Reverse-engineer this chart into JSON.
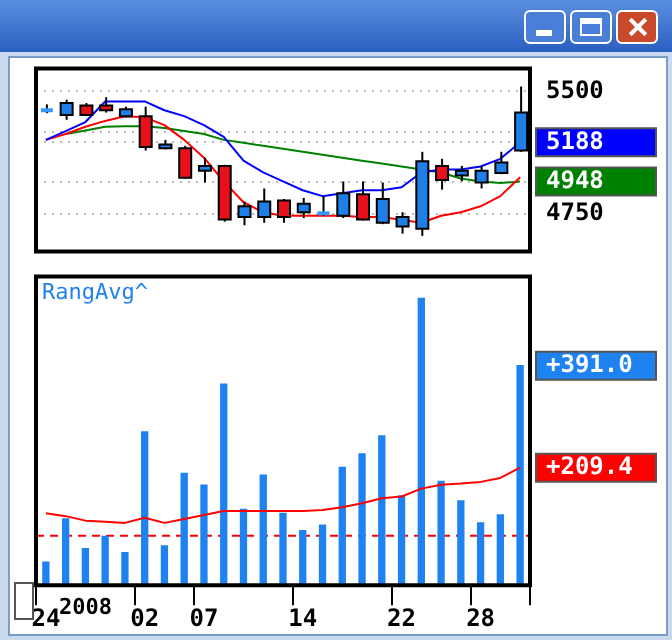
{
  "chart_data": [
    {
      "type": "candlestick",
      "categories": [
        "24",
        null,
        null,
        null,
        null,
        "02",
        null,
        null,
        "07",
        null,
        null,
        null,
        null,
        "14",
        null,
        null,
        null,
        null,
        "22",
        null,
        null,
        null,
        "28",
        null,
        null
      ],
      "ohlc": [
        [
          5384,
          5420,
          5366,
          5384
        ],
        [
          5355,
          5449,
          5326,
          5428
        ],
        [
          5413,
          5428,
          5348,
          5355
        ],
        [
          5413,
          5464,
          5370,
          5384
        ],
        [
          5348,
          5406,
          5341,
          5391
        ],
        [
          5348,
          5406,
          5138,
          5159
        ],
        [
          5152,
          5203,
          5145,
          5174
        ],
        [
          5152,
          5167,
          4964,
          4971
        ],
        [
          5015,
          5094,
          4942,
          5044
        ],
        [
          5044,
          5051,
          4703,
          4717
        ],
        [
          4732,
          4826,
          4681,
          4797
        ],
        [
          4732,
          4906,
          4696,
          4826
        ],
        [
          4833,
          4841,
          4696,
          4732
        ],
        [
          4761,
          4848,
          4725,
          4812
        ],
        [
          4754,
          4862,
          4739,
          4754
        ],
        [
          4739,
          4949,
          4725,
          4877
        ],
        [
          4870,
          4949,
          4710,
          4717
        ],
        [
          4696,
          4942,
          4688,
          4841
        ],
        [
          4674,
          4761,
          4630,
          4732
        ],
        [
          4659,
          5130,
          4616,
          5072
        ],
        [
          5044,
          5087,
          4899,
          4957
        ],
        [
          4986,
          5044,
          4950,
          5015
        ],
        [
          4942,
          5044,
          4906,
          5015
        ],
        [
          5000,
          5130,
          4993,
          5065
        ],
        [
          5138,
          5529,
          5130,
          5370
        ]
      ],
      "colors": [
        "#3399ff",
        "#1e7fe8",
        "#e8101a",
        "#e8101a",
        "#1e7fe8",
        "#e8101a",
        "#1e7fe8",
        "#e8101a",
        "#1e7fe8",
        "#e8101a",
        "#1e7fe8",
        "#1e7fe8",
        "#e8101a",
        "#1e7fe8",
        "#3399ff",
        "#1e7fe8",
        "#e8101a",
        "#1e7fe8",
        "#1e7fe8",
        "#1e7fe8",
        "#e8101a",
        "#1e7fe8",
        "#1e7fe8",
        "#1e7fe8",
        "#1e7fe8"
      ],
      "series": [
        {
          "type": "line",
          "color": "#0000ff",
          "values": [
            5203,
            5257,
            5312,
            5438,
            5438,
            5438,
            5384,
            5348,
            5293,
            5221,
            5076,
            5004,
            4949,
            4895,
            4859,
            4877,
            4895,
            4895,
            4913,
            5004,
            5022,
            5022,
            5040,
            5087,
            5188
          ]
        },
        {
          "type": "line",
          "color": "#ff0000",
          "values": [
            5203,
            5239,
            5283,
            5319,
            5348,
            5341,
            5293,
            5203,
            5094,
            4949,
            4822,
            4761,
            4739,
            4739,
            4739,
            4739,
            4732,
            4732,
            4714,
            4696,
            4739,
            4761,
            4797,
            4859,
            4975
          ]
        },
        {
          "type": "line",
          "color": "#008000",
          "values": [
            null,
            5239,
            5261,
            5283,
            5286,
            5286,
            5275,
            5257,
            5239,
            5203,
            5185,
            5167,
            5149,
            5130,
            5112,
            5094,
            5076,
            5058,
            5040,
            5022,
            5004,
            4967,
            4949,
            4940,
            4948
          ]
        }
      ],
      "ylim": [
        4520,
        5640
      ],
      "yticks": [
        4750,
        4948,
        5188,
        {
          "value": 5250,
          "label": null
        },
        5500
      ],
      "grid": true,
      "tick_labels": "y",
      "marker": "none"
    },
    {
      "type": "bar",
      "title": "RangAvg^",
      "categories": [
        "24",
        null,
        null,
        null,
        null,
        "02",
        null,
        null,
        "07",
        null,
        null,
        null,
        null,
        "14",
        null,
        null,
        null,
        null,
        "22",
        null,
        null,
        null,
        "28",
        null,
        null
      ],
      "series": [
        {
          "type": "bar",
          "color": "#1e82f0",
          "values": [
            41,
            118,
            65,
            87,
            58,
            273,
            70,
            199,
            178,
            358,
            135,
            196,
            128,
            97,
            107,
            210,
            234,
            266,
            159,
            511,
            185,
            150,
            111,
            125,
            391.0
          ]
        },
        {
          "type": "line",
          "color": "#ff0000",
          "values": [
            128,
            123,
            115,
            113,
            111,
            120,
            111,
            118,
            125,
            132,
            132,
            132,
            132,
            132,
            134,
            139,
            146,
            155,
            158,
            172,
            179,
            181,
            184,
            191,
            209.4
          ]
        }
      ],
      "ylim": [
        0,
        550
      ],
      "yticks": [
        {
          "value": 209.4,
          "label": "+209.4"
        },
        {
          "value": 391.0,
          "label": "+391.0"
        }
      ],
      "marker": "none",
      "ref_lines": [
        {
          "axis": "y",
          "value": 88,
          "color": "#ff0000",
          "line_style": "dashed"
        }
      ],
      "annotations": [
        "2008"
      ]
    }
  ]
}
